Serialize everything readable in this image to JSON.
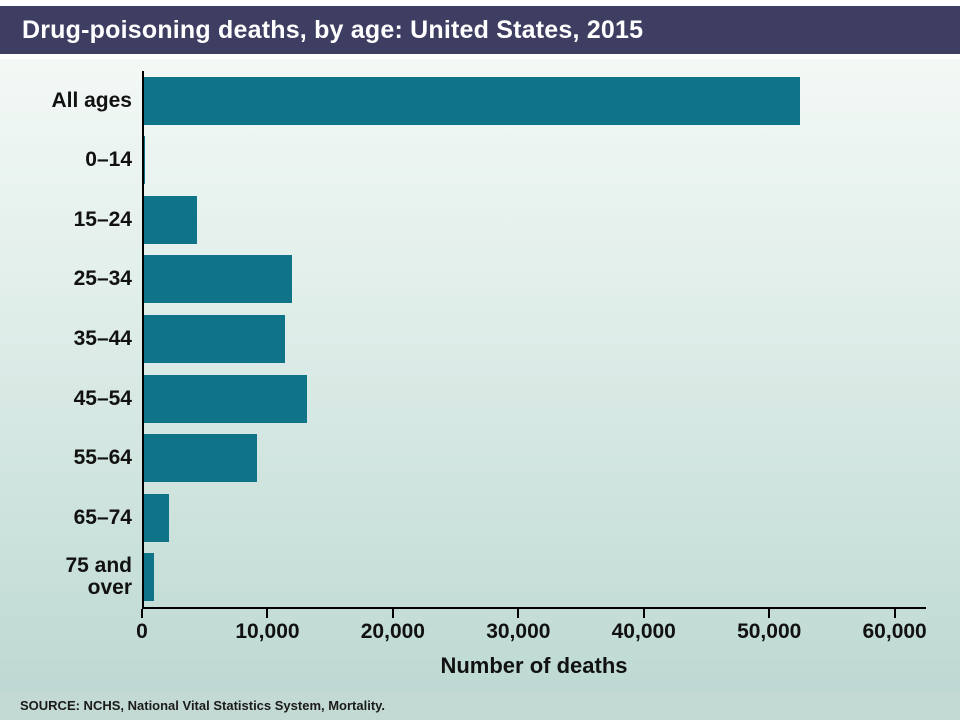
{
  "header": {
    "title": "Drug-poisoning deaths, by age: United States, 2015"
  },
  "footer": {
    "source": "SOURCE: NCHS, National Vital Statistics System, Mortality."
  },
  "colors": {
    "title_bar_bg": "#3e3e63",
    "bar_fill": "#0f7487",
    "background_top": "#f3f8f5",
    "background_bottom": "#bed9d3",
    "footer_bg": "#c3d9d3"
  },
  "chart_data": {
    "type": "bar",
    "orientation": "horizontal",
    "title": "Drug-poisoning deaths, by age: United States, 2015",
    "categories": [
      "All ages",
      "0–14",
      "15–24",
      "25–34",
      "35–44",
      "45–54",
      "55–64",
      "65–74",
      "75 and over"
    ],
    "values": [
      52400,
      100,
      4200,
      11800,
      11300,
      13000,
      9000,
      2000,
      800
    ],
    "xlabel": "Number of deaths",
    "ylabel": "",
    "xlim": [
      0,
      62500
    ],
    "xticks": [
      0,
      10000,
      20000,
      30000,
      40000,
      50000,
      60000
    ],
    "xtick_labels": [
      "0",
      "10,000",
      "20,000",
      "30,000",
      "40,000",
      "50,000",
      "60,000"
    ],
    "grid": false,
    "legend": false,
    "bar_color": "#0f7487"
  }
}
